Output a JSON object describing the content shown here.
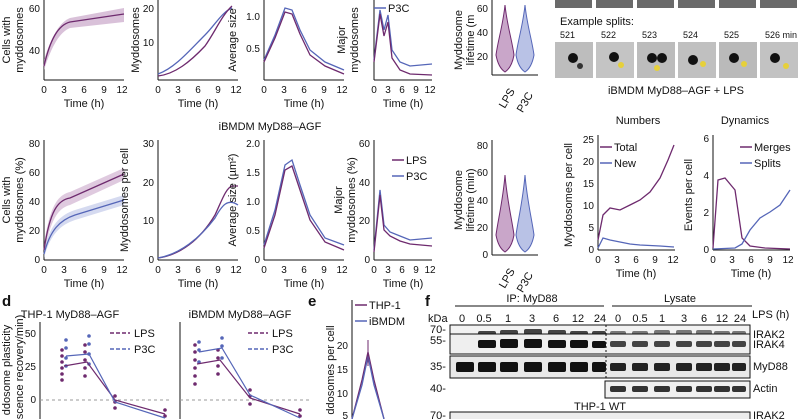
{
  "colors": {
    "lps": "#6e2a6e",
    "p3c": "#5566b8",
    "lps_band": "#c9a6c9",
    "p3c_band": "#b9c2e6"
  },
  "top_row": {
    "time_label": "Time (h)",
    "ticks_0_12": [
      "0",
      "3",
      "6",
      "9",
      "12"
    ],
    "panel1": {
      "ylabel_a": "Cells with",
      "ylabel_b": "myddosomes",
      "yticks": [
        "40",
        "60"
      ]
    },
    "panel2": {
      "ylabel": "Myddosomes",
      "yticks": [
        "10",
        "20"
      ]
    },
    "panel3": {
      "ylabel": "Average size",
      "yticks": [
        "0.5",
        "1.0"
      ]
    },
    "panel4": {
      "ylabel_a": "Major",
      "ylabel_b": "myddosomes",
      "legend_fragment": "P3C",
      "yticks": [
        "10",
        "20"
      ]
    },
    "panel5": {
      "ylabel_a": "Myddosome",
      "ylabel_b": "lifetime (m",
      "yticks": [
        "20",
        "40",
        "60"
      ],
      "xlabels": [
        "LPS",
        "P3C"
      ]
    }
  },
  "splits": {
    "title": "Example splits:",
    "times": [
      "521",
      "522",
      "523",
      "524",
      "525",
      "526 min"
    ],
    "caption": "iBMDM MyD88–AGF + LPS"
  },
  "middle": {
    "title": "iBMDM MyD88–AGF",
    "panel1": {
      "ylabel_a": "Cells with",
      "ylabel_b": "myddosomes (%)",
      "yticks": [
        "0",
        "20",
        "40",
        "60",
        "80"
      ]
    },
    "panel2": {
      "ylabel": "Myddosomes per cell",
      "yticks": [
        "0",
        "10",
        "20",
        "30"
      ]
    },
    "panel3": {
      "ylabel": "Average size (µm²)",
      "yticks": [
        "0",
        "0.5",
        "1.0",
        "1.5",
        "2.0"
      ]
    },
    "panel4": {
      "ylabel_a": "Major",
      "ylabel_b": "myddosomes (%)",
      "yticks": [
        "0",
        "20",
        "40",
        "60"
      ],
      "legend": [
        "LPS",
        "P3C"
      ]
    },
    "panel5": {
      "ylabel_a": "Myddosome",
      "ylabel_b": "lifetime (min)",
      "yticks": [
        "0",
        "20",
        "40",
        "60",
        "80"
      ],
      "xlabels": [
        "LPS",
        "P3C"
      ]
    },
    "numbers": {
      "title": "Numbers",
      "ylabel": "Myddosomes per cell",
      "yticks": [
        "0",
        "5",
        "10",
        "15",
        "20",
        "25"
      ],
      "legend": [
        "Total",
        "New"
      ]
    },
    "dynamics": {
      "title": "Dynamics",
      "ylabel": "Events per cell",
      "yticks": [
        "0",
        "2",
        "4",
        "6"
      ],
      "legend": [
        "Merges",
        "Splits"
      ]
    }
  },
  "panel_d": {
    "letter": "d",
    "ylabel_a": "ddosome plasticity",
    "ylabel_b": "escence recovery/min)",
    "yticks": [
      "0",
      "25",
      "50"
    ],
    "left_title": "THP-1 MyD88–AGF",
    "right_title": "iBMDM MyD88–AGF",
    "legend": [
      "LPS",
      "P3C"
    ]
  },
  "panel_e": {
    "letter": "e",
    "ylabel": "ddosomes per cell",
    "yticks": [
      "5",
      "10",
      "15",
      "20"
    ],
    "legend": [
      "THP-1",
      "iBMDM"
    ]
  },
  "panel_f": {
    "letter": "f",
    "ip_label": "IP: MyD88",
    "lysate_label": "Lysate",
    "kda": "kDa",
    "lps_h": "LPS (h)",
    "timepoints": [
      "0",
      "0.5",
      "1",
      "3",
      "6",
      "12",
      "24"
    ],
    "markers": [
      "70-",
      "55-",
      "35-",
      "40-",
      "70-"
    ],
    "bands": [
      "IRAK2",
      "IRAK4",
      "MyD88",
      "Actin",
      "IRAK2"
    ],
    "wt_label": "THP-1 WT"
  }
}
